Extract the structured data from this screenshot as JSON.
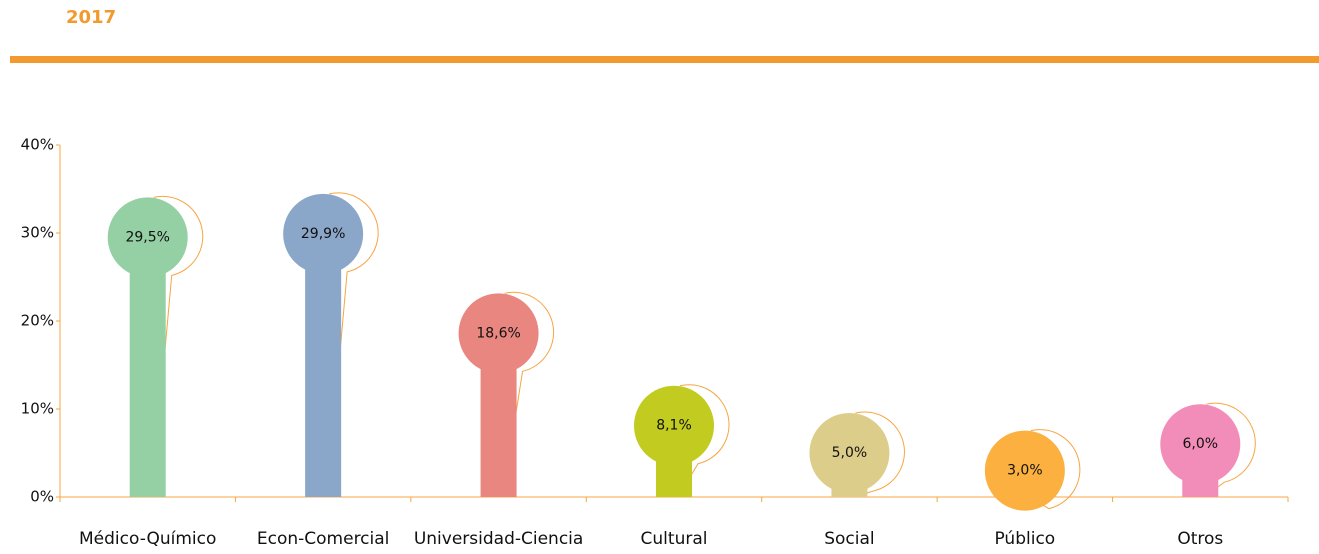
{
  "chart_data": {
    "type": "bar",
    "title": "2017",
    "categories": [
      "Médico-Químico",
      "Econ-Comercial",
      "Universidad-Ciencia",
      "Cultural",
      "Social",
      "Público",
      "Otros"
    ],
    "values": [
      29.5,
      29.9,
      18.6,
      8.1,
      5.0,
      3.0,
      6.0
    ],
    "value_labels": [
      "29,5%",
      "29,9%",
      "18,6%",
      "8,1%",
      "5,0%",
      "3,0%",
      "6,0%"
    ],
    "colors": [
      "#95d0a5",
      "#8aa6c8",
      "#e8867f",
      "#c2cb1f",
      "#ddcd8a",
      "#fbb040",
      "#f28cb8"
    ],
    "ylim": [
      0,
      40
    ],
    "yticks": [
      {
        "value": 0,
        "label": "0%"
      },
      {
        "value": 10,
        "label": "10%"
      },
      {
        "value": 20,
        "label": "20%"
      },
      {
        "value": 30,
        "label": "30%"
      },
      {
        "value": 40,
        "label": "40%"
      }
    ],
    "grid": false
  }
}
